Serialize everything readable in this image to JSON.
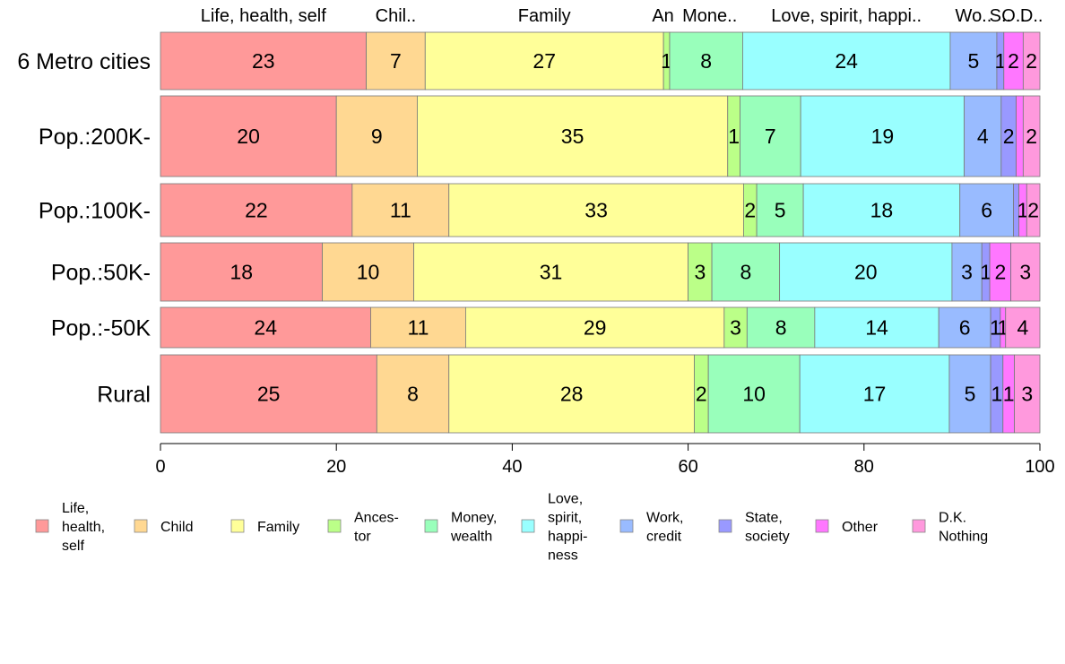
{
  "chart_data": {
    "type": "bar",
    "orientation": "horizontal",
    "stacked": true,
    "title": "",
    "xlabel": "",
    "ylabel": "",
    "xlim": [
      0,
      100
    ],
    "x_ticks": [
      "0",
      "20",
      "40",
      "60",
      "80",
      "100"
    ],
    "categories": [
      "6 Metro cities",
      "Pop.:200K-",
      "Pop.:100K-",
      "Pop.:50K-",
      "Pop.:-50K",
      "Rural"
    ],
    "top_labels": [
      "Life, health, self",
      "Chil..",
      "Family",
      "An",
      "Mone..",
      "Love, spirit, happi..",
      "Wo..",
      "S..",
      "O..",
      "D.."
    ],
    "legend_position": "bottom",
    "series": [
      {
        "name": "Life, health, self",
        "legend_lines": [
          "Life,",
          "health,",
          "self"
        ],
        "color": "#ff9999",
        "values": [
          23.4,
          20.0,
          21.8,
          18.4,
          23.9,
          24.6
        ],
        "labels": [
          "23",
          "20",
          "22",
          "18",
          "24",
          "25"
        ]
      },
      {
        "name": "Child",
        "legend_lines": [
          "Child"
        ],
        "color": "#ffd892",
        "values": [
          6.7,
          9.2,
          11.0,
          10.4,
          10.8,
          8.2
        ],
        "labels": [
          "7",
          "9",
          "11",
          "10",
          "11",
          "8"
        ]
      },
      {
        "name": "Family",
        "legend_lines": [
          "Family"
        ],
        "color": "#ffff99",
        "values": [
          27.1,
          35.3,
          33.5,
          31.2,
          29.4,
          27.9
        ],
        "labels": [
          "27",
          "35",
          "33",
          "31",
          "29",
          "28"
        ]
      },
      {
        "name": "Ancestor",
        "legend_lines": [
          "Ances-",
          "tor"
        ],
        "color": "#bbff88",
        "values": [
          0.7,
          1.4,
          1.5,
          2.7,
          2.6,
          1.6
        ],
        "labels": [
          "1",
          "1",
          "2",
          "3",
          "3",
          "2"
        ]
      },
      {
        "name": "Money, wealth",
        "legend_lines": [
          "Money,",
          "wealth"
        ],
        "color": "#99ffbb",
        "values": [
          8.3,
          6.9,
          5.3,
          7.7,
          7.7,
          10.4
        ],
        "labels": [
          "8",
          "7",
          "5",
          "8",
          "8",
          "10"
        ]
      },
      {
        "name": "Love, spirit, happiness",
        "legend_lines": [
          "Love,",
          "spirit,",
          "happi-",
          "ness"
        ],
        "color": "#99ffff",
        "values": [
          23.6,
          18.6,
          17.8,
          19.6,
          14.1,
          17.0
        ],
        "labels": [
          "24",
          "19",
          "18",
          "20",
          "14",
          "17"
        ]
      },
      {
        "name": "Work, credit",
        "legend_lines": [
          "Work,",
          "credit"
        ],
        "color": "#99bbff",
        "values": [
          5.3,
          4.2,
          6.1,
          3.4,
          5.9,
          4.7
        ],
        "labels": [
          "5",
          "4",
          "6",
          "3",
          "6",
          "5"
        ]
      },
      {
        "name": "State, society",
        "legend_lines": [
          "State,",
          "society"
        ],
        "color": "#9999ff",
        "values": [
          0.8,
          1.7,
          0.6,
          0.9,
          1.1,
          1.4
        ],
        "labels": [
          "1",
          "2",
          "",
          "1",
          "1",
          "1"
        ]
      },
      {
        "name": "Other",
        "legend_lines": [
          "Other"
        ],
        "color": "#ff77ff",
        "values": [
          2.2,
          0.8,
          0.9,
          2.4,
          0.6,
          1.3
        ],
        "labels": [
          "2",
          "",
          "1",
          "2",
          "1",
          "1"
        ]
      },
      {
        "name": "D.K. Nothing",
        "legend_lines": [
          "D.K.",
          "Nothing"
        ],
        "color": "#ff99dd",
        "values": [
          1.9,
          1.9,
          1.5,
          3.3,
          3.9,
          2.9
        ],
        "labels": [
          "2",
          "2",
          "2",
          "3",
          "4",
          "3"
        ]
      }
    ]
  }
}
